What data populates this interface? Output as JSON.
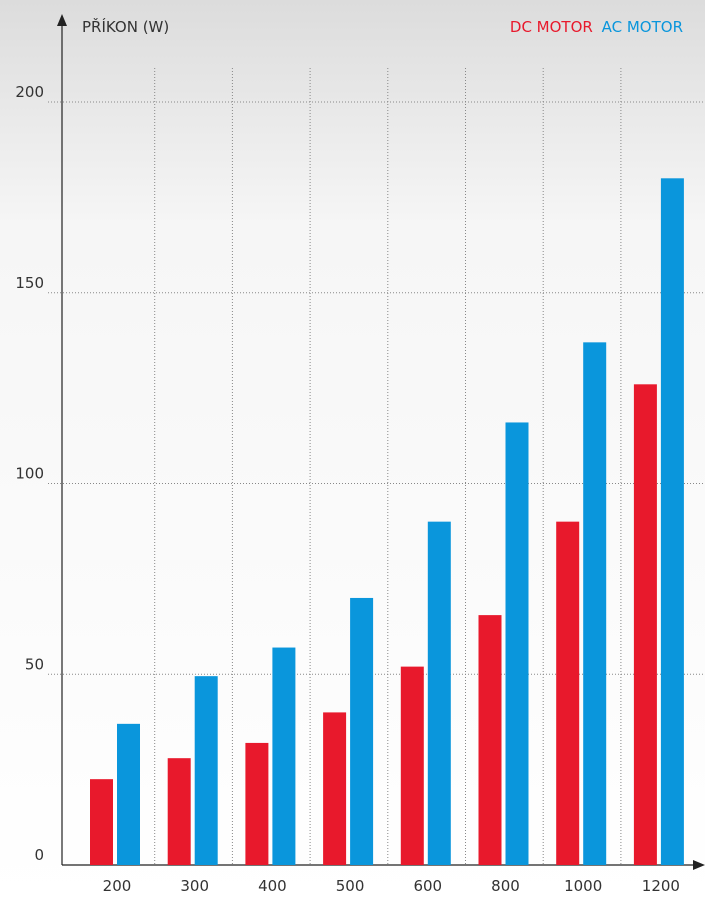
{
  "chart_data": {
    "type": "bar",
    "y_label": "PŘÍKON (W)",
    "categories": [
      "200",
      "300",
      "400",
      "500",
      "600",
      "800",
      "1000",
      "1200"
    ],
    "series": [
      {
        "name": "DC MOTOR",
        "color": "#e8192c",
        "values": [
          22.5,
          28,
          32,
          40,
          52,
          65.5,
          90,
          126
        ]
      },
      {
        "name": "AC MOTOR",
        "color": "#0a96dc",
        "values": [
          37,
          49.5,
          57,
          70,
          90,
          116,
          137,
          180
        ]
      }
    ],
    "ylim": [
      0,
      200
    ],
    "yticks": [
      0,
      50,
      100,
      150,
      200
    ],
    "grid": true
  }
}
